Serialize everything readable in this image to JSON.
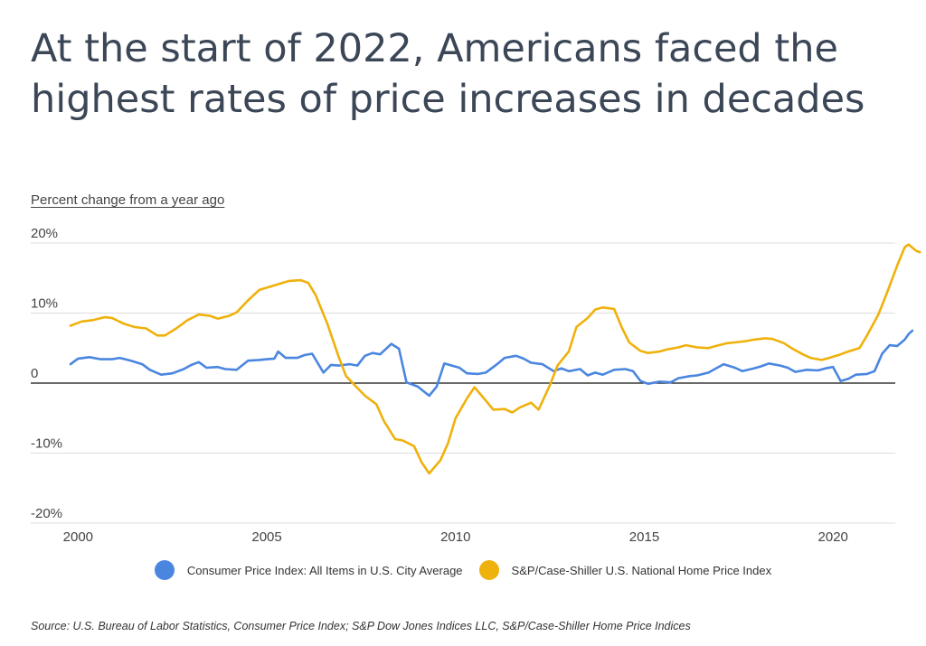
{
  "title": "At the start of 2022, Americans faced the highest rates of price increases in decades",
  "subtitle": "Percent change from a year ago",
  "source": "Source:  U.S. Bureau of Labor Statistics, Consumer Price Index; S&P Dow Jones Indices LLC, S&P/Case-Shiller Home Price Indices",
  "colors": {
    "cpi": "#4a86e0",
    "home": "#efb10c",
    "grid": "#dddddd",
    "zero": "#111111"
  },
  "chart_data": {
    "type": "line",
    "title": "At the start of 2022, Americans faced the highest rates of price increases in decades",
    "ylabel": "Percent change from a year ago",
    "xlim": [
      1999.8,
      2021.6
    ],
    "ylim": [
      -20,
      20
    ],
    "y_ticks": [
      {
        "value": 20,
        "label": "20%"
      },
      {
        "value": 10,
        "label": "10%"
      },
      {
        "value": 0,
        "label": "0"
      },
      {
        "value": -10,
        "label": "-10%"
      },
      {
        "value": -20,
        "label": "-20%"
      }
    ],
    "x_ticks": [
      {
        "value": 2000,
        "label": "2000"
      },
      {
        "value": 2005,
        "label": "2005"
      },
      {
        "value": 2010,
        "label": "2010"
      },
      {
        "value": 2015,
        "label": "2015"
      },
      {
        "value": 2020,
        "label": "2020"
      }
    ],
    "legend_position": "bottom",
    "series": [
      {
        "name": "Consumer Price Index: All Items in U.S. City Average",
        "color": "#4a86e0",
        "points": [
          [
            1999.8,
            2.7
          ],
          [
            2000.0,
            3.5
          ],
          [
            2000.3,
            3.7
          ],
          [
            2000.6,
            3.4
          ],
          [
            2000.9,
            3.4
          ],
          [
            2001.1,
            3.6
          ],
          [
            2001.4,
            3.2
          ],
          [
            2001.7,
            2.7
          ],
          [
            2001.9,
            1.9
          ],
          [
            2002.2,
            1.2
          ],
          [
            2002.5,
            1.4
          ],
          [
            2002.8,
            2.0
          ],
          [
            2003.0,
            2.6
          ],
          [
            2003.2,
            3.0
          ],
          [
            2003.4,
            2.2
          ],
          [
            2003.7,
            2.3
          ],
          [
            2003.9,
            2.0
          ],
          [
            2004.2,
            1.9
          ],
          [
            2004.5,
            3.2
          ],
          [
            2004.8,
            3.3
          ],
          [
            2005.0,
            3.4
          ],
          [
            2005.2,
            3.5
          ],
          [
            2005.3,
            4.5
          ],
          [
            2005.5,
            3.6
          ],
          [
            2005.8,
            3.6
          ],
          [
            2006.0,
            4.0
          ],
          [
            2006.2,
            4.2
          ],
          [
            2006.5,
            1.5
          ],
          [
            2006.7,
            2.6
          ],
          [
            2006.9,
            2.5
          ],
          [
            2007.2,
            2.7
          ],
          [
            2007.4,
            2.5
          ],
          [
            2007.6,
            3.9
          ],
          [
            2007.8,
            4.3
          ],
          [
            2008.0,
            4.1
          ],
          [
            2008.3,
            5.6
          ],
          [
            2008.5,
            4.9
          ],
          [
            2008.7,
            0.1
          ],
          [
            2009.0,
            -0.5
          ],
          [
            2009.3,
            -1.8
          ],
          [
            2009.5,
            -0.5
          ],
          [
            2009.7,
            2.8
          ],
          [
            2009.9,
            2.5
          ],
          [
            2010.1,
            2.2
          ],
          [
            2010.3,
            1.4
          ],
          [
            2010.6,
            1.3
          ],
          [
            2010.8,
            1.5
          ],
          [
            2011.1,
            2.7
          ],
          [
            2011.3,
            3.6
          ],
          [
            2011.6,
            3.9
          ],
          [
            2011.8,
            3.5
          ],
          [
            2012.0,
            2.9
          ],
          [
            2012.3,
            2.7
          ],
          [
            2012.6,
            1.7
          ],
          [
            2012.8,
            2.1
          ],
          [
            2013.0,
            1.7
          ],
          [
            2013.3,
            2.0
          ],
          [
            2013.5,
            1.1
          ],
          [
            2013.7,
            1.5
          ],
          [
            2013.9,
            1.2
          ],
          [
            2014.2,
            1.9
          ],
          [
            2014.5,
            2.0
          ],
          [
            2014.7,
            1.7
          ],
          [
            2014.9,
            0.3
          ],
          [
            2015.1,
            -0.1
          ],
          [
            2015.4,
            0.2
          ],
          [
            2015.7,
            0.1
          ],
          [
            2015.9,
            0.7
          ],
          [
            2016.2,
            1.0
          ],
          [
            2016.4,
            1.1
          ],
          [
            2016.7,
            1.5
          ],
          [
            2016.9,
            2.1
          ],
          [
            2017.1,
            2.7
          ],
          [
            2017.4,
            2.2
          ],
          [
            2017.6,
            1.7
          ],
          [
            2017.9,
            2.1
          ],
          [
            2018.1,
            2.4
          ],
          [
            2018.3,
            2.8
          ],
          [
            2018.6,
            2.5
          ],
          [
            2018.8,
            2.2
          ],
          [
            2019.0,
            1.6
          ],
          [
            2019.3,
            1.9
          ],
          [
            2019.6,
            1.8
          ],
          [
            2019.8,
            2.1
          ],
          [
            2020.0,
            2.3
          ],
          [
            2020.2,
            0.3
          ],
          [
            2020.4,
            0.6
          ],
          [
            2020.6,
            1.2
          ],
          [
            2020.9,
            1.3
          ],
          [
            2021.1,
            1.7
          ],
          [
            2021.3,
            4.2
          ],
          [
            2021.5,
            5.4
          ],
          [
            2021.7,
            5.3
          ],
          [
            2021.9,
            6.2
          ],
          [
            2022.0,
            7.0
          ],
          [
            2022.1,
            7.5
          ]
        ]
      },
      {
        "name": "S&P/Case-Shiller U.S. National Home Price Index",
        "color": "#efb10c",
        "points": [
          [
            1999.8,
            8.2
          ],
          [
            2000.1,
            8.8
          ],
          [
            2000.4,
            9.0
          ],
          [
            2000.7,
            9.4
          ],
          [
            2000.9,
            9.3
          ],
          [
            2001.2,
            8.5
          ],
          [
            2001.5,
            8.0
          ],
          [
            2001.8,
            7.8
          ],
          [
            2002.1,
            6.8
          ],
          [
            2002.3,
            6.8
          ],
          [
            2002.6,
            7.8
          ],
          [
            2002.9,
            9.0
          ],
          [
            2003.2,
            9.8
          ],
          [
            2003.5,
            9.6
          ],
          [
            2003.7,
            9.2
          ],
          [
            2004.0,
            9.6
          ],
          [
            2004.2,
            10.1
          ],
          [
            2004.5,
            11.8
          ],
          [
            2004.8,
            13.3
          ],
          [
            2005.1,
            13.8
          ],
          [
            2005.4,
            14.3
          ],
          [
            2005.6,
            14.6
          ],
          [
            2005.9,
            14.7
          ],
          [
            2006.1,
            14.3
          ],
          [
            2006.3,
            12.5
          ],
          [
            2006.6,
            8.5
          ],
          [
            2006.9,
            3.8
          ],
          [
            2007.1,
            1.0
          ],
          [
            2007.4,
            -0.7
          ],
          [
            2007.6,
            -1.8
          ],
          [
            2007.9,
            -3.0
          ],
          [
            2008.1,
            -5.4
          ],
          [
            2008.4,
            -8.0
          ],
          [
            2008.6,
            -8.2
          ],
          [
            2008.9,
            -9.0
          ],
          [
            2009.1,
            -11.3
          ],
          [
            2009.3,
            -12.9
          ],
          [
            2009.6,
            -11.0
          ],
          [
            2009.8,
            -8.6
          ],
          [
            2010.0,
            -5.0
          ],
          [
            2010.3,
            -2.2
          ],
          [
            2010.5,
            -0.6
          ],
          [
            2010.8,
            -2.5
          ],
          [
            2011.0,
            -3.8
          ],
          [
            2011.3,
            -3.7
          ],
          [
            2011.5,
            -4.2
          ],
          [
            2011.7,
            -3.5
          ],
          [
            2012.0,
            -2.8
          ],
          [
            2012.2,
            -3.8
          ],
          [
            2012.5,
            -0.3
          ],
          [
            2012.7,
            2.5
          ],
          [
            2013.0,
            4.5
          ],
          [
            2013.2,
            8.0
          ],
          [
            2013.5,
            9.3
          ],
          [
            2013.7,
            10.5
          ],
          [
            2013.9,
            10.8
          ],
          [
            2014.2,
            10.6
          ],
          [
            2014.4,
            8.0
          ],
          [
            2014.6,
            5.8
          ],
          [
            2014.9,
            4.6
          ],
          [
            2015.1,
            4.3
          ],
          [
            2015.4,
            4.5
          ],
          [
            2015.6,
            4.8
          ],
          [
            2015.9,
            5.1
          ],
          [
            2016.1,
            5.4
          ],
          [
            2016.4,
            5.1
          ],
          [
            2016.7,
            5.0
          ],
          [
            2016.9,
            5.3
          ],
          [
            2017.2,
            5.7
          ],
          [
            2017.4,
            5.8
          ],
          [
            2017.7,
            6.0
          ],
          [
            2017.9,
            6.2
          ],
          [
            2018.2,
            6.4
          ],
          [
            2018.4,
            6.3
          ],
          [
            2018.7,
            5.7
          ],
          [
            2018.9,
            5.0
          ],
          [
            2019.2,
            4.1
          ],
          [
            2019.4,
            3.6
          ],
          [
            2019.7,
            3.3
          ],
          [
            2019.9,
            3.6
          ],
          [
            2020.2,
            4.1
          ],
          [
            2020.4,
            4.5
          ],
          [
            2020.7,
            5.0
          ],
          [
            2020.9,
            6.8
          ],
          [
            2021.2,
            9.8
          ],
          [
            2021.4,
            12.5
          ],
          [
            2021.7,
            16.8
          ],
          [
            2021.9,
            19.4
          ],
          [
            2022.0,
            19.8
          ],
          [
            2022.2,
            18.9
          ],
          [
            2022.3,
            18.7
          ]
        ]
      }
    ]
  }
}
